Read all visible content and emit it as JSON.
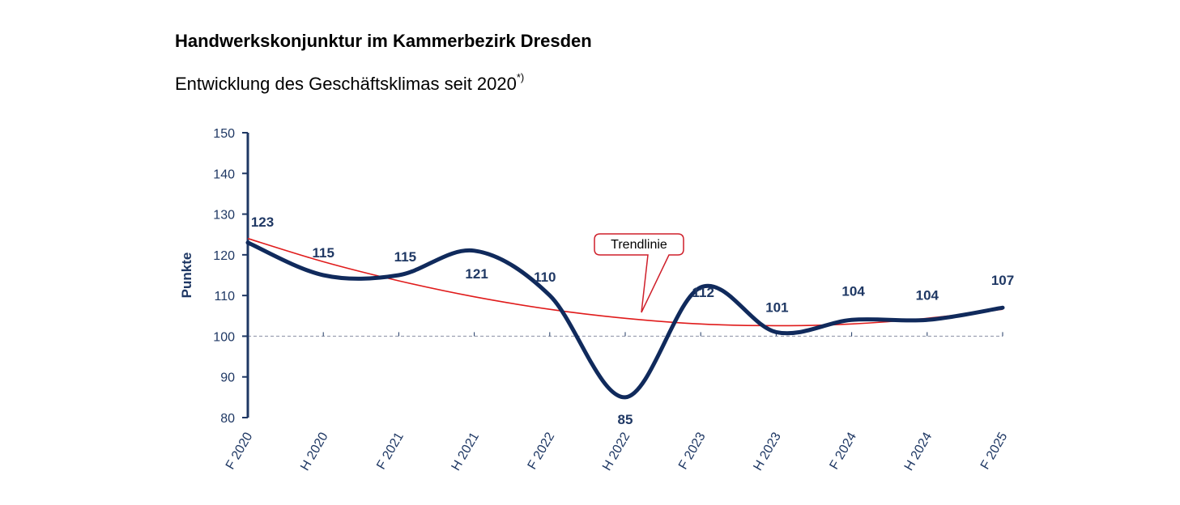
{
  "chart_data": {
    "type": "line",
    "title": "Handwerkskonjunktur im Kammerbezirk Dresden",
    "subtitle": "Entwicklung des Geschäftsklimas seit 2020",
    "subtitle_note": "*)",
    "ylabel": "Punkte",
    "xlabel": "",
    "ylim": [
      80,
      150
    ],
    "yticks": [
      80,
      90,
      100,
      110,
      120,
      130,
      140,
      150
    ],
    "reference_line": 100,
    "categories": [
      "F 2020",
      "H 2020",
      "F 2021",
      "H 2021",
      "F 2022",
      "H 2022",
      "F 2023",
      "H 2023",
      "F 2024",
      "H 2024",
      "F 2025"
    ],
    "series": [
      {
        "values": [
          123,
          115,
          115,
          121,
          110,
          85,
          112,
          101,
          104,
          104,
          107
        ],
        "color": "#102a5c",
        "data_labels": [
          "123",
          "115",
          "115",
          "121",
          "110",
          "85",
          "112",
          "101",
          "104",
          "104",
          "107"
        ]
      },
      {
        "name": "Trendlinie",
        "type": "trend",
        "values": [
          124,
          118.3,
          113.6,
          109.7,
          106.6,
          104.4,
          103.0,
          102.6,
          103.0,
          104.4,
          106.6
        ],
        "color": "#e01b1b"
      }
    ],
    "annotation": {
      "text": "Trendlinie"
    },
    "grid": false,
    "legend": "none"
  }
}
